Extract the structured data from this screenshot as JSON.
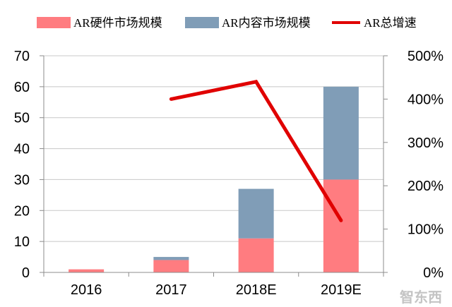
{
  "chart_data": {
    "type": "bar",
    "stacked": true,
    "categories": [
      "2016",
      "2017",
      "2018E",
      "2019E"
    ],
    "series": [
      {
        "name": "AR硬件市场规模",
        "type": "bar",
        "color": "#FF7C80",
        "values": [
          1,
          4,
          11,
          30
        ]
      },
      {
        "name": "AR内容市场规模",
        "type": "bar",
        "color": "#809DB7",
        "values": [
          0,
          1,
          16,
          30
        ]
      },
      {
        "name": "AR总增速",
        "type": "line",
        "secondary_axis": true,
        "color": "#E00000",
        "values": [
          null,
          400,
          440,
          120
        ]
      }
    ],
    "y_left": {
      "lim": [
        0,
        70
      ],
      "ticks": [
        0,
        10,
        20,
        30,
        40,
        50,
        60,
        70
      ],
      "tick_labels": [
        "0",
        "10",
        "20",
        "30",
        "40",
        "50",
        "60",
        "70"
      ]
    },
    "y_right": {
      "lim": [
        0,
        500
      ],
      "ticks": [
        0,
        100,
        200,
        300,
        400,
        500
      ],
      "tick_labels": [
        "0%",
        "100%",
        "200%",
        "300%",
        "400%",
        "500%"
      ]
    },
    "grid": true,
    "legend": "top"
  },
  "watermark": "智东西"
}
